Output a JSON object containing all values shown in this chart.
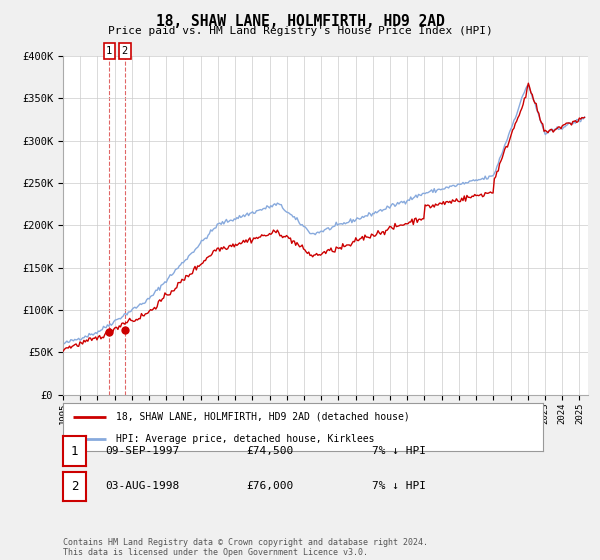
{
  "title": "18, SHAW LANE, HOLMFIRTH, HD9 2AD",
  "subtitle": "Price paid vs. HM Land Registry's House Price Index (HPI)",
  "ylim": [
    0,
    400000
  ],
  "yticks": [
    0,
    50000,
    100000,
    150000,
    200000,
    250000,
    300000,
    350000,
    400000
  ],
  "ytick_labels": [
    "£0",
    "£50K",
    "£100K",
    "£150K",
    "£200K",
    "£250K",
    "£300K",
    "£350K",
    "£400K"
  ],
  "sale1_date": 1997.69,
  "sale1_price": 74500,
  "sale2_date": 1998.59,
  "sale2_price": 76000,
  "legend_line1": "18, SHAW LANE, HOLMFIRTH, HD9 2AD (detached house)",
  "legend_line2": "HPI: Average price, detached house, Kirklees",
  "table_rows": [
    {
      "num": "1",
      "date": "09-SEP-1997",
      "price": "£74,500",
      "hpi": "7% ↓ HPI"
    },
    {
      "num": "2",
      "date": "03-AUG-1998",
      "price": "£76,000",
      "hpi": "7% ↓ HPI"
    }
  ],
  "footnote": "Contains HM Land Registry data © Crown copyright and database right 2024.\nThis data is licensed under the Open Government Licence v3.0.",
  "line_color_red": "#cc0000",
  "line_color_blue": "#88aadd",
  "bg_color": "#f0f0f0",
  "plot_bg_color": "#ffffff",
  "grid_color": "#cccccc"
}
